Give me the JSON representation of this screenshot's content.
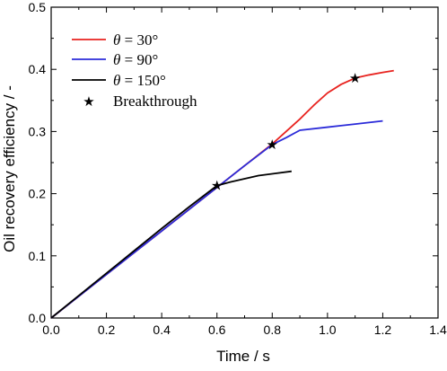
{
  "chart_data": {
    "type": "line",
    "xlabel": "Time / s",
    "ylabel": "Oil recovery efficiency / -",
    "xlim": [
      0.0,
      1.4
    ],
    "ylim": [
      0.0,
      0.5
    ],
    "xticks": [
      "0.0",
      "0.2",
      "0.4",
      "0.6",
      "0.8",
      "1.0",
      "1.2",
      "1.4"
    ],
    "yticks": [
      "0.0",
      "0.1",
      "0.2",
      "0.3",
      "0.4",
      "0.5"
    ],
    "grid": false,
    "legend_position": "top-left",
    "series": [
      {
        "name": "θ = 30°",
        "color": "#e8231f",
        "x": [
          0.0,
          0.1,
          0.2,
          0.3,
          0.4,
          0.5,
          0.6,
          0.7,
          0.8,
          0.85,
          0.9,
          0.95,
          1.0,
          1.05,
          1.1,
          1.15,
          1.2,
          1.24
        ],
        "y": [
          0.0,
          0.035,
          0.07,
          0.105,
          0.14,
          0.175,
          0.21,
          0.245,
          0.28,
          0.3,
          0.32,
          0.342,
          0.362,
          0.376,
          0.386,
          0.391,
          0.395,
          0.398
        ]
      },
      {
        "name": "θ = 90°",
        "color": "#2b2bd9",
        "x": [
          0.0,
          0.1,
          0.2,
          0.3,
          0.4,
          0.5,
          0.6,
          0.7,
          0.8,
          0.85,
          0.9,
          1.0,
          1.1,
          1.2
        ],
        "y": [
          0.0,
          0.035,
          0.07,
          0.105,
          0.14,
          0.175,
          0.21,
          0.245,
          0.279,
          0.29,
          0.302,
          0.307,
          0.312,
          0.317
        ]
      },
      {
        "name": "θ = 150°",
        "color": "#000000",
        "x": [
          0.0,
          0.1,
          0.2,
          0.3,
          0.4,
          0.5,
          0.6,
          0.65,
          0.7,
          0.75,
          0.8,
          0.87
        ],
        "y": [
          0.0,
          0.036,
          0.072,
          0.108,
          0.144,
          0.179,
          0.213,
          0.219,
          0.224,
          0.229,
          0.232,
          0.236
        ]
      }
    ],
    "markers": {
      "name": "Breakthrough",
      "symbol": "star",
      "points": [
        {
          "x": 0.6,
          "y": 0.213
        },
        {
          "x": 0.8,
          "y": 0.279
        },
        {
          "x": 1.1,
          "y": 0.386
        }
      ]
    }
  },
  "legend": [
    {
      "key": "theta30",
      "symbol": "θ",
      "eq": " = 30°",
      "color": "#e8231f",
      "kind": "line"
    },
    {
      "key": "theta90",
      "symbol": "θ",
      "eq": " = 90°",
      "color": "#2b2bd9",
      "kind": "line"
    },
    {
      "key": "theta150",
      "symbol": "θ",
      "eq": " = 150°",
      "color": "#000000",
      "kind": "line"
    },
    {
      "key": "breakthrough",
      "label": "Breakthrough",
      "kind": "star"
    }
  ]
}
